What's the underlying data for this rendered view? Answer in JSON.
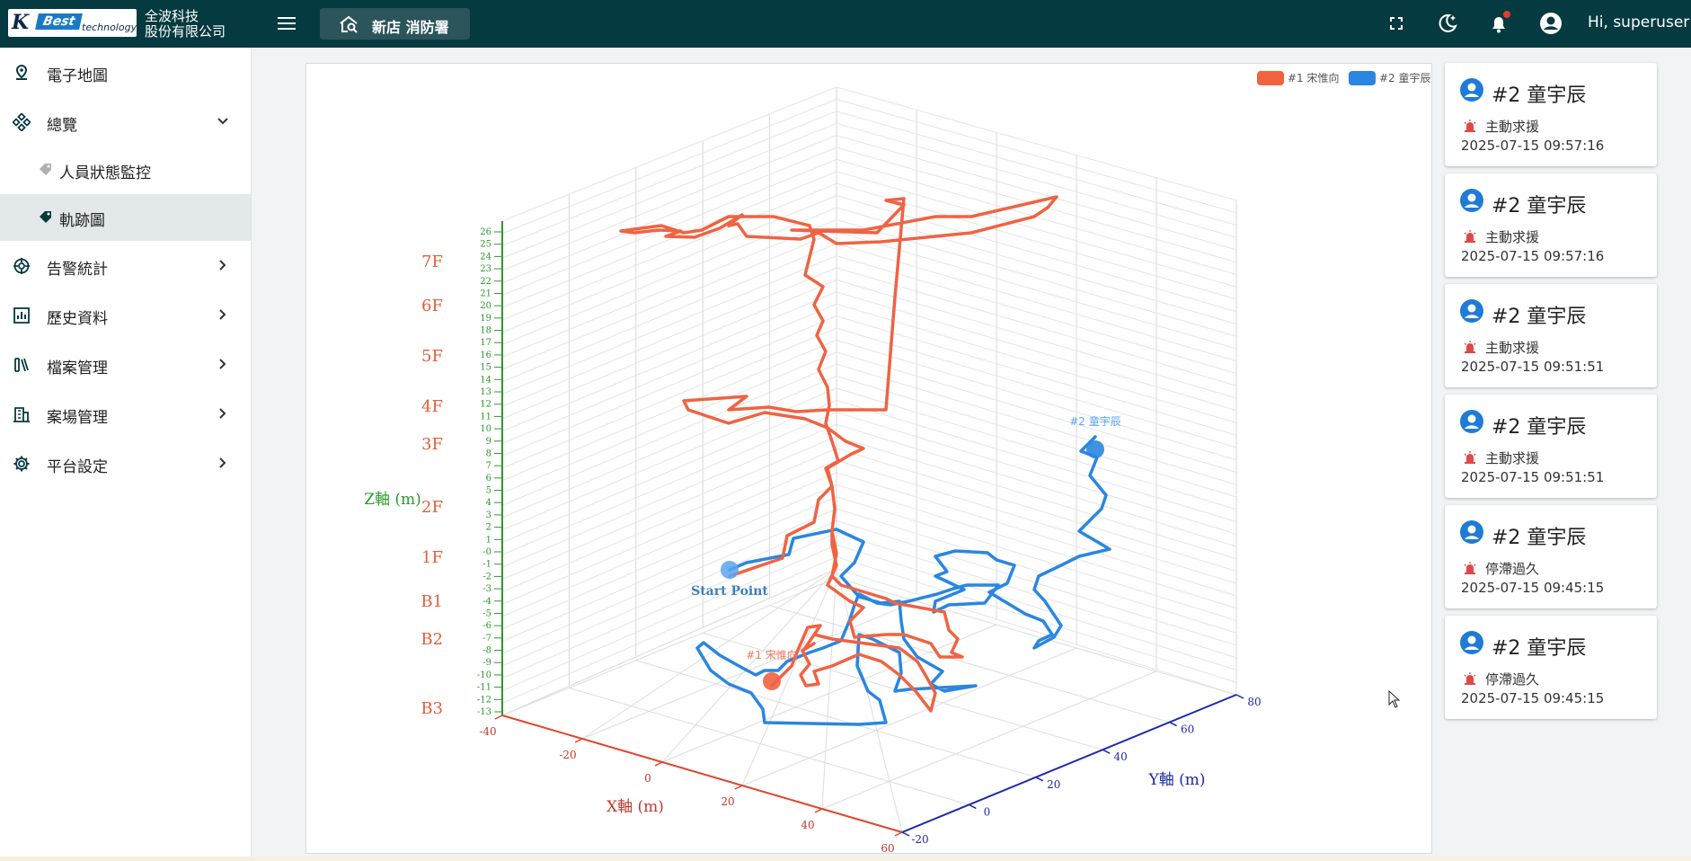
{
  "header": {
    "logo_k": "K",
    "logo_best": "Best",
    "logo_tech": "technology",
    "company_line1": "全波科技",
    "company_line2": "股份有限公司",
    "site_name": "新店 消防署",
    "greeting": "Hi, superuser"
  },
  "sidebar": {
    "items": [
      {
        "label": "電子地圖",
        "icon": "map-pin-icon"
      },
      {
        "label": "總覽",
        "icon": "grid-diamond-icon",
        "expanded": true
      },
      {
        "label": "人員狀態監控",
        "icon": "tag-icon",
        "sub": true
      },
      {
        "label": "軌跡圖",
        "icon": "tag-icon",
        "sub": true,
        "active": true
      },
      {
        "label": "告警統計",
        "icon": "crosshair-icon"
      },
      {
        "label": "歷史資料",
        "icon": "bar-chart-icon"
      },
      {
        "label": "檔案管理",
        "icon": "books-icon"
      },
      {
        "label": "案場管理",
        "icon": "building-icon"
      },
      {
        "label": "平台設定",
        "icon": "gear-icon"
      }
    ]
  },
  "chart_data": {
    "type": "line3d",
    "legend": [
      "#1 宋惟向",
      "#2 童宇辰"
    ],
    "series": [
      {
        "name": "#1 宋惟向",
        "color": "#ef6343"
      },
      {
        "name": "#2 童宇辰",
        "color": "#2a86e0"
      }
    ],
    "start_label": "Start Point",
    "end_labels": [
      "#1 宋惟向",
      "#2 童宇辰"
    ],
    "x_axis": {
      "label": "X軸 (m)",
      "ticks": [
        "-40",
        "-20",
        "0",
        "20",
        "40",
        "60"
      ]
    },
    "y_axis": {
      "label": "Y軸 (m)",
      "ticks": [
        "-20",
        "0",
        "20",
        "40",
        "60",
        "80"
      ]
    },
    "z_axis": {
      "label": "Z軸 (m)",
      "ticks": [
        "26",
        "25",
        "24",
        "23",
        "22",
        "21",
        "20",
        "19",
        "18",
        "17",
        "16",
        "15",
        "14",
        "13",
        "12",
        "11",
        "10",
        "9",
        "8",
        "7",
        "6",
        "5",
        "4",
        "3",
        "2",
        "1",
        "-0",
        "-1",
        "-2",
        "-3",
        "-4",
        "-5",
        "-6",
        "-7",
        "-8",
        "-9",
        "-10",
        "-11",
        "-12",
        "-13"
      ]
    },
    "floor_labels": [
      "7F",
      "6F",
      "5F",
      "4F",
      "3F",
      "2F",
      "1F",
      "B1",
      "B2",
      "B3"
    ]
  },
  "alerts": [
    {
      "name": "#2 童宇辰",
      "type": "主動求援",
      "time": "2025-07-15 09:57:16"
    },
    {
      "name": "#2 童宇辰",
      "type": "主動求援",
      "time": "2025-07-15 09:57:16"
    },
    {
      "name": "#2 童宇辰",
      "type": "主動求援",
      "time": "2025-07-15 09:51:51"
    },
    {
      "name": "#2 童宇辰",
      "type": "主動求援",
      "time": "2025-07-15 09:51:51"
    },
    {
      "name": "#2 童宇辰",
      "type": "停滯過久",
      "time": "2025-07-15 09:45:15"
    },
    {
      "name": "#2 童宇辰",
      "type": "停滯過久",
      "time": "2025-07-15 09:45:15"
    }
  ]
}
